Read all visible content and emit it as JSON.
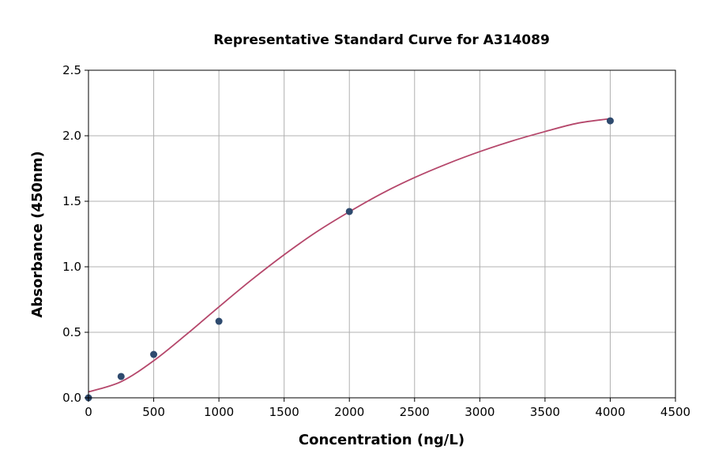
{
  "chart_data": {
    "type": "scatter",
    "title": "Representative Standard Curve for A314089",
    "xlabel": "Concentration (ng/L)",
    "ylabel": "Absorbance (450nm)",
    "xlim": [
      0,
      4500
    ],
    "ylim": [
      0,
      2.5
    ],
    "xticks": [
      0,
      500,
      1000,
      1500,
      2000,
      2500,
      3000,
      3500,
      4000,
      4500
    ],
    "yticks": [
      "0.0",
      "0.5",
      "1.0",
      "1.5",
      "2.0",
      "2.5"
    ],
    "grid": true,
    "points": {
      "x": [
        0,
        250,
        500,
        1000,
        2000,
        4000
      ],
      "y": [
        0.0,
        0.163,
        0.331,
        0.584,
        1.422,
        2.114
      ],
      "color": "#2e4a6e"
    },
    "fit_curve": {
      "x": [
        0,
        250,
        500,
        750,
        1000,
        1250,
        1500,
        1750,
        2000,
        2250,
        2500,
        2750,
        3000,
        3250,
        3500,
        3750,
        4000
      ],
      "y": [
        0.045,
        0.123,
        0.283,
        0.483,
        0.694,
        0.9,
        1.092,
        1.267,
        1.42,
        1.56,
        1.681,
        1.786,
        1.879,
        1.961,
        2.032,
        2.096,
        2.13
      ],
      "color": "#b5476b"
    }
  }
}
